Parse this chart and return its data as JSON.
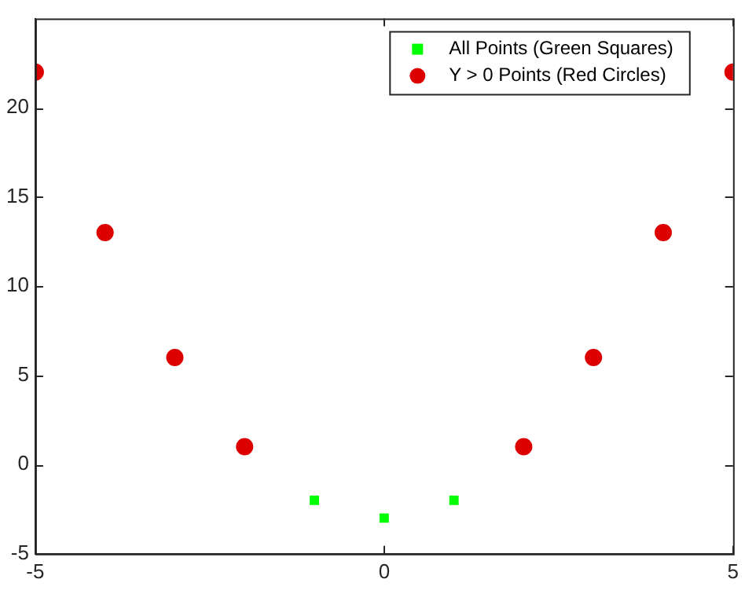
{
  "chart_data": {
    "type": "scatter",
    "x": [
      -5,
      -4,
      -3,
      -2,
      -1,
      0,
      1,
      2,
      3,
      4,
      5
    ],
    "series": [
      {
        "name": "All Points (Green Squares)",
        "color": "#00ff00",
        "marker": "square",
        "values": [
          null,
          null,
          null,
          null,
          -2,
          -3,
          -2,
          null,
          null,
          null,
          null
        ]
      },
      {
        "name": "Y > 0 Points (Red Circles)",
        "color": "#dd0000",
        "marker": "circle",
        "values": [
          22,
          13,
          6,
          1,
          null,
          null,
          null,
          1,
          6,
          13,
          22
        ]
      }
    ],
    "xlim": [
      -5,
      5
    ],
    "xticks": [
      -5,
      0,
      5
    ],
    "ylim": [
      -5,
      25
    ],
    "yticks": [
      -5,
      0,
      5,
      10,
      15,
      20
    ],
    "grid": false,
    "legend": "top right"
  }
}
